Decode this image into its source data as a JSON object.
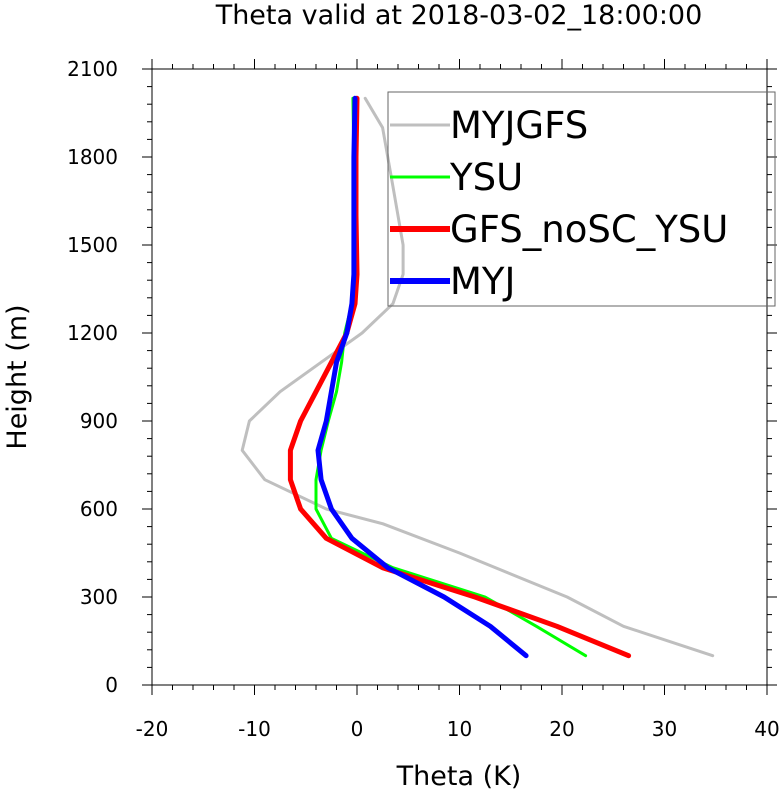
{
  "chart_data": {
    "type": "line",
    "title": "Theta valid at 2018-03-02_18:00:00",
    "xlabel": "Theta (K)",
    "ylabel": "Height (m)",
    "xlim": [
      -20,
      40
    ],
    "ylim": [
      0,
      2100
    ],
    "xticks": [
      -20,
      -10,
      0,
      10,
      20,
      30,
      40
    ],
    "yticks": [
      0,
      300,
      600,
      900,
      1200,
      1500,
      1800,
      2100
    ],
    "grid": false,
    "legend_position": "top-right",
    "series": [
      {
        "name": "MYJGFS",
        "color": "#bfbfbf",
        "points": [
          [
            34.7,
            100
          ],
          [
            26.0,
            200
          ],
          [
            20.5,
            300
          ],
          [
            10.0,
            450
          ],
          [
            2.5,
            550
          ],
          [
            -3.0,
            600
          ],
          [
            -9.0,
            700
          ],
          [
            -11.2,
            800
          ],
          [
            -10.5,
            900
          ],
          [
            -7.5,
            1000
          ],
          [
            -3.5,
            1100
          ],
          [
            0.5,
            1200
          ],
          [
            3.5,
            1300
          ],
          [
            4.5,
            1400
          ],
          [
            4.5,
            1500
          ],
          [
            3.5,
            1700
          ],
          [
            2.5,
            1900
          ],
          [
            0.8,
            2000
          ]
        ]
      },
      {
        "name": "YSU",
        "color": "#00ff00",
        "points": [
          [
            22.3,
            100
          ],
          [
            17.5,
            200
          ],
          [
            12.5,
            300
          ],
          [
            3.5,
            400
          ],
          [
            -2.5,
            500
          ],
          [
            -4.0,
            600
          ],
          [
            -4.0,
            700
          ],
          [
            -3.5,
            800
          ],
          [
            -2.8,
            900
          ],
          [
            -2.0,
            1000
          ],
          [
            -1.5,
            1100
          ],
          [
            -1.2,
            1200
          ],
          [
            -0.5,
            1300
          ],
          [
            -0.3,
            1400
          ],
          [
            -0.3,
            1600
          ],
          [
            -0.3,
            1800
          ],
          [
            -0.4,
            2000
          ]
        ]
      },
      {
        "name": "GFS_noSC_YSU",
        "color": "#ff0000",
        "points": [
          [
            26.5,
            100
          ],
          [
            19.5,
            200
          ],
          [
            11.5,
            300
          ],
          [
            2.5,
            400
          ],
          [
            -3.0,
            500
          ],
          [
            -5.5,
            600
          ],
          [
            -6.5,
            700
          ],
          [
            -6.5,
            800
          ],
          [
            -5.5,
            900
          ],
          [
            -4.0,
            1000
          ],
          [
            -2.5,
            1100
          ],
          [
            -1.0,
            1200
          ],
          [
            -0.2,
            1300
          ],
          [
            0.0,
            1400
          ],
          [
            -0.1,
            1600
          ],
          [
            -0.1,
            1800
          ],
          [
            0.0,
            2000
          ]
        ]
      },
      {
        "name": "MYJ",
        "color": "#0000ff",
        "points": [
          [
            16.5,
            100
          ],
          [
            13.0,
            200
          ],
          [
            8.5,
            300
          ],
          [
            3.0,
            400
          ],
          [
            -0.5,
            500
          ],
          [
            -2.5,
            600
          ],
          [
            -3.5,
            700
          ],
          [
            -3.8,
            800
          ],
          [
            -3.0,
            900
          ],
          [
            -2.5,
            1000
          ],
          [
            -2.0,
            1100
          ],
          [
            -1.0,
            1200
          ],
          [
            -0.5,
            1300
          ],
          [
            -0.3,
            1400
          ],
          [
            -0.3,
            1600
          ],
          [
            -0.3,
            1800
          ],
          [
            -0.2,
            2000
          ]
        ]
      }
    ]
  }
}
